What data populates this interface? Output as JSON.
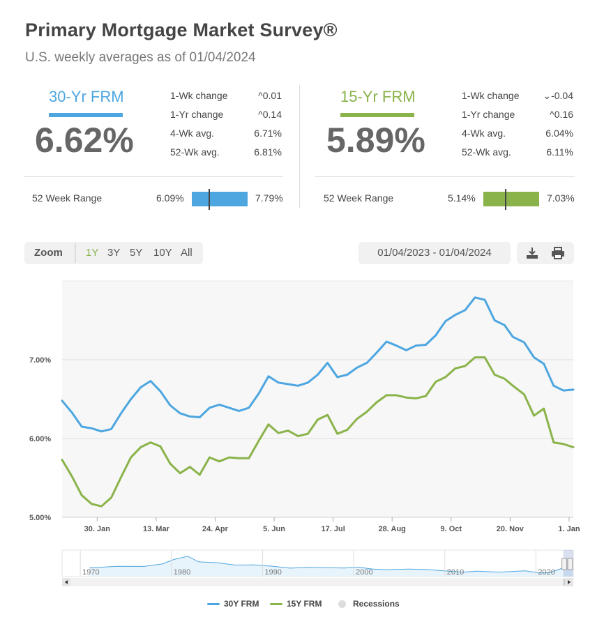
{
  "header": {
    "title": "Primary Mortgage Market Survey®",
    "subtitle": "U.S. weekly averages as of 01/04/2024"
  },
  "colors": {
    "frm30": "#4da6e0",
    "frm15": "#8ab34a",
    "recession": "#dcdcdc"
  },
  "rates": [
    {
      "name": "30-Yr FRM",
      "value": "6.62%",
      "stats": [
        {
          "label": "1-Wk change",
          "direction": "up",
          "value": "0.01"
        },
        {
          "label": "1-Yr change",
          "direction": "up",
          "value": "0.14"
        },
        {
          "label": "4-Wk avg.",
          "direction": "",
          "value": "6.71%"
        },
        {
          "label": "52-Wk avg.",
          "direction": "",
          "value": "6.81%"
        }
      ],
      "range": {
        "label": "52 Week Range",
        "low": "6.09%",
        "high": "7.79%",
        "current": 6.62,
        "low_value": 6.09,
        "high_value": 7.79
      }
    },
    {
      "name": "15-Yr FRM",
      "value": "5.89%",
      "stats": [
        {
          "label": "1-Wk change",
          "direction": "down",
          "value": "-0.04"
        },
        {
          "label": "1-Yr change",
          "direction": "up",
          "value": "0.16"
        },
        {
          "label": "4-Wk avg.",
          "direction": "",
          "value": "6.04%"
        },
        {
          "label": "52-Wk avg.",
          "direction": "",
          "value": "6.11%"
        }
      ],
      "range": {
        "label": "52 Week Range",
        "low": "5.14%",
        "high": "7.03%",
        "current": 5.89,
        "low_value": 5.14,
        "high_value": 7.03
      }
    }
  ],
  "toolbar": {
    "zoom_label": "Zoom",
    "zoom_options": [
      "1Y",
      "3Y",
      "5Y",
      "10Y",
      "All"
    ],
    "active_zoom": "1Y",
    "date_range": "01/04/2023 - 01/04/2024",
    "download_icon": "download-icon",
    "print_icon": "print-icon"
  },
  "chart_data": {
    "type": "line",
    "y_ticks": [
      "5.00%",
      "6.00%",
      "7.00%"
    ],
    "ylim": [
      5.0,
      8.0
    ],
    "x_tick_labels": [
      "30. Jan",
      "13. Mar",
      "24. Apr",
      "5. Jun",
      "17. Jul",
      "28. Aug",
      "9. Oct",
      "20. Nov",
      "1. Jan"
    ],
    "x": [
      "2023-01-05",
      "2023-01-12",
      "2023-01-19",
      "2023-01-26",
      "2023-02-02",
      "2023-02-09",
      "2023-02-16",
      "2023-02-23",
      "2023-03-02",
      "2023-03-09",
      "2023-03-16",
      "2023-03-23",
      "2023-03-30",
      "2023-04-06",
      "2023-04-13",
      "2023-04-20",
      "2023-04-27",
      "2023-05-04",
      "2023-05-11",
      "2023-05-18",
      "2023-05-25",
      "2023-06-01",
      "2023-06-08",
      "2023-06-15",
      "2023-06-22",
      "2023-06-29",
      "2023-07-06",
      "2023-07-13",
      "2023-07-20",
      "2023-07-27",
      "2023-08-03",
      "2023-08-10",
      "2023-08-17",
      "2023-08-24",
      "2023-08-31",
      "2023-09-07",
      "2023-09-14",
      "2023-09-21",
      "2023-09-28",
      "2023-10-05",
      "2023-10-12",
      "2023-10-19",
      "2023-10-26",
      "2023-11-02",
      "2023-11-09",
      "2023-11-16",
      "2023-11-22",
      "2023-11-30",
      "2023-12-07",
      "2023-12-14",
      "2023-12-21",
      "2023-12-28",
      "2024-01-04"
    ],
    "series": [
      {
        "name": "30Y FRM",
        "values": [
          6.48,
          6.33,
          6.15,
          6.13,
          6.09,
          6.12,
          6.32,
          6.5,
          6.65,
          6.73,
          6.6,
          6.42,
          6.32,
          6.28,
          6.27,
          6.39,
          6.43,
          6.39,
          6.35,
          6.39,
          6.57,
          6.79,
          6.71,
          6.69,
          6.67,
          6.71,
          6.81,
          6.96,
          6.78,
          6.81,
          6.9,
          6.96,
          7.09,
          7.23,
          7.18,
          7.12,
          7.18,
          7.19,
          7.31,
          7.49,
          7.57,
          7.63,
          7.79,
          7.76,
          7.5,
          7.44,
          7.29,
          7.22,
          7.03,
          6.95,
          6.67,
          6.61,
          6.62
        ]
      },
      {
        "name": "15Y FRM",
        "values": [
          5.73,
          5.52,
          5.28,
          5.17,
          5.14,
          5.25,
          5.51,
          5.76,
          5.89,
          5.95,
          5.9,
          5.68,
          5.56,
          5.64,
          5.54,
          5.76,
          5.71,
          5.76,
          5.75,
          5.75,
          5.97,
          6.18,
          6.07,
          6.1,
          6.03,
          6.06,
          6.24,
          6.3,
          6.06,
          6.11,
          6.25,
          6.34,
          6.46,
          6.55,
          6.55,
          6.52,
          6.51,
          6.54,
          6.72,
          6.78,
          6.89,
          6.92,
          7.03,
          7.03,
          6.81,
          6.76,
          6.67,
          6.56,
          6.29,
          6.38,
          5.95,
          5.93,
          5.89
        ]
      }
    ],
    "legend": [
      {
        "name": "30Y FRM",
        "kind": "line"
      },
      {
        "name": "15Y FRM",
        "kind": "line"
      },
      {
        "name": "Recessions",
        "kind": "dot"
      }
    ],
    "legend_position": "bottom",
    "grid": true,
    "navigator": {
      "year_labels": [
        "1970",
        "1980",
        "1990",
        "2000",
        "2010",
        "2020"
      ]
    }
  }
}
